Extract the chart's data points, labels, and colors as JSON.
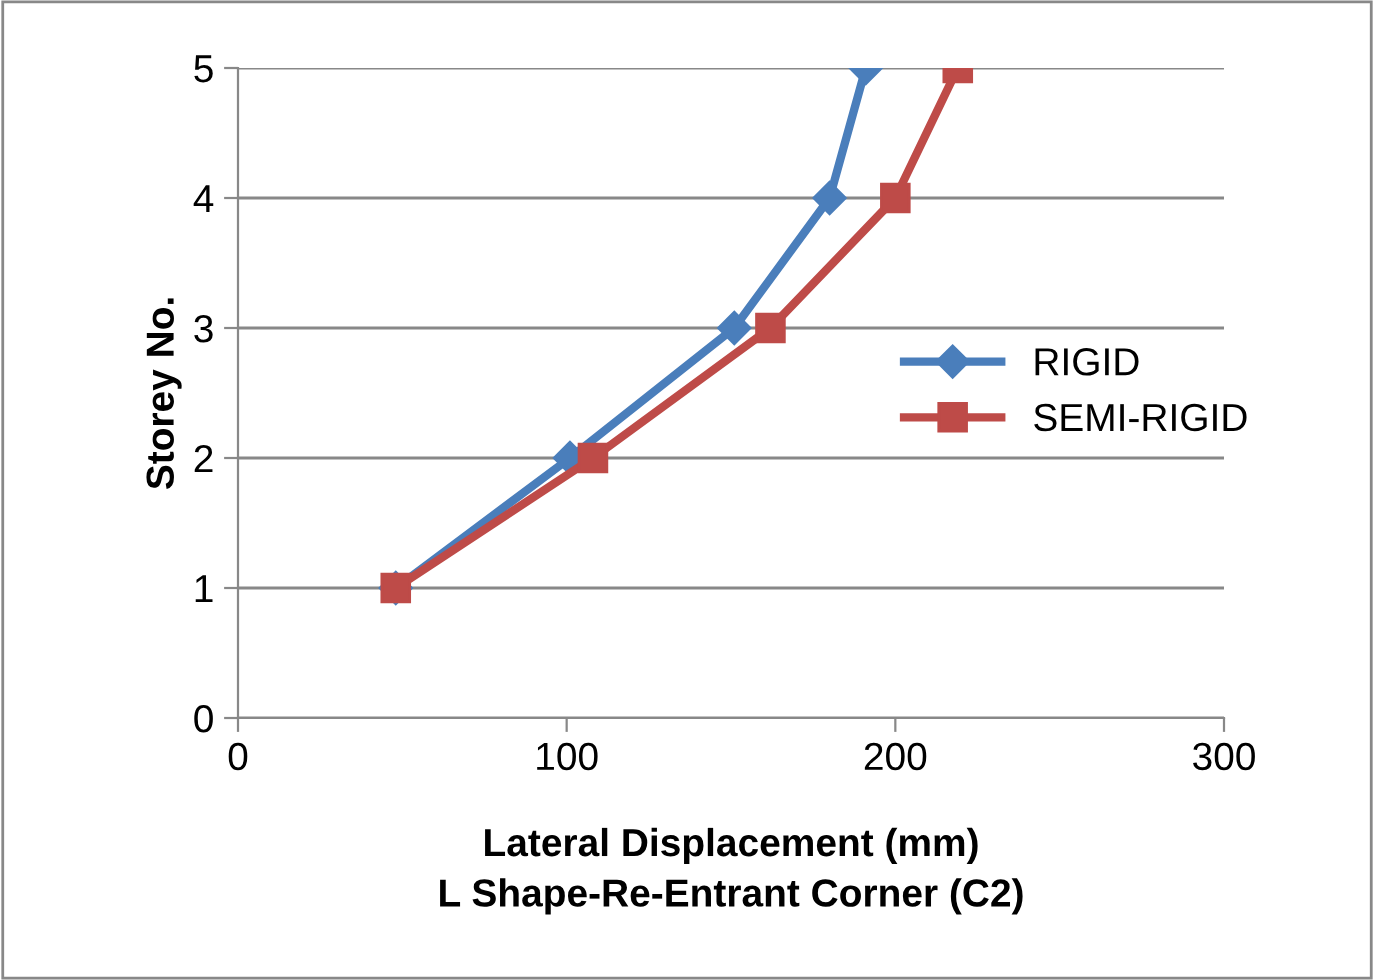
{
  "chart_data": {
    "type": "line",
    "xlabel": "Lateral Displacement (mm)\nL Shape-Re-Entrant Corner (C2)",
    "ylabel": "Storey No.",
    "series": [
      {
        "name": "RIGID",
        "color": "#4a7ebb",
        "marker": "diamond",
        "x": [
          48,
          101,
          151,
          180,
          191
        ],
        "values": [
          1,
          2,
          3,
          4,
          5
        ]
      },
      {
        "name": "SEMI-RIGID",
        "color": "#be4b48",
        "marker": "square",
        "x": [
          48,
          108,
          162,
          200,
          219
        ],
        "values": [
          1,
          2,
          3,
          4,
          5
        ]
      }
    ],
    "xlim": [
      0,
      300
    ],
    "xticks": [
      0,
      100,
      200,
      300
    ],
    "ylim": [
      0,
      5
    ],
    "yticks": [
      0,
      1,
      2,
      3,
      4,
      5
    ],
    "grid": "y",
    "legend": "right"
  }
}
